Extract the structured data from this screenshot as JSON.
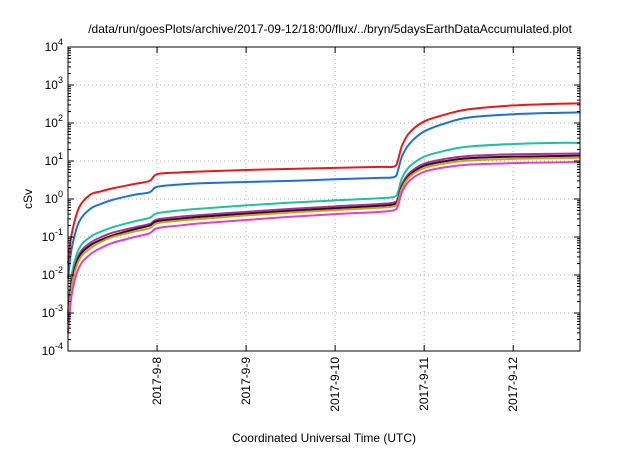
{
  "chart_data": {
    "type": "line",
    "title": "/data/run/goesPlots/archive/2017-09-12/18:00/flux/../bryn/5daysEarthDataAccumulated.plot",
    "xlabel": "Coordinated Universal Time (UTC)",
    "ylabel": "cSv",
    "xlim": [
      "2017-09-07T00:00",
      "2017-09-12T18:00"
    ],
    "ylim": [
      0.0001,
      10000
    ],
    "yscale": "log",
    "grid": true,
    "x_ticks": [
      "2017-9-8",
      "2017-9-9",
      "2017-9-10",
      "2017-9-11",
      "2017-9-12"
    ],
    "x_tick_values": [
      "2017-09-08T00:00",
      "2017-09-09T00:00",
      "2017-09-10T00:00",
      "2017-09-11T00:00",
      "2017-09-12T00:00"
    ],
    "y_ticks": [
      {
        "base": "10",
        "exp": "-4",
        "value": 0.0001
      },
      {
        "base": "10",
        "exp": "-3",
        "value": 0.001
      },
      {
        "base": "10",
        "exp": "-2",
        "value": 0.01
      },
      {
        "base": "10",
        "exp": "-1",
        "value": 0.1
      },
      {
        "base": "10",
        "exp": "0",
        "value": 1
      },
      {
        "base": "10",
        "exp": "1",
        "value": 10
      },
      {
        "base": "10",
        "exp": "2",
        "value": 100
      },
      {
        "base": "10",
        "exp": "3",
        "value": 1000
      },
      {
        "base": "10",
        "exp": "4",
        "value": 10000
      }
    ],
    "x": [
      "2017-09-07T00:00",
      "2017-09-07T01:00",
      "2017-09-07T03:00",
      "2017-09-07T06:00",
      "2017-09-07T09:00",
      "2017-09-07T12:00",
      "2017-09-07T18:00",
      "2017-09-07T22:00",
      "2017-09-08T00:00",
      "2017-09-08T06:00",
      "2017-09-08T12:00",
      "2017-09-09T00:00",
      "2017-09-09T12:00",
      "2017-09-10T00:00",
      "2017-09-10T12:00",
      "2017-09-10T16:00",
      "2017-09-10T17:00",
      "2017-09-10T18:00",
      "2017-09-10T20:00",
      "2017-09-11T00:00",
      "2017-09-11T06:00",
      "2017-09-11T12:00",
      "2017-09-12T00:00",
      "2017-09-12T12:00",
      "2017-09-12T18:00"
    ],
    "series": [
      {
        "color": "#e41a1c",
        "values": [
          0.02,
          0.12,
          0.6,
          1.3,
          1.6,
          1.9,
          2.5,
          3.0,
          4.5,
          5.0,
          5.3,
          5.8,
          6.2,
          6.6,
          7.0,
          7.2,
          11,
          25,
          55,
          110,
          170,
          230,
          290,
          320,
          330
        ]
      },
      {
        "color": "#1f6fd6",
        "values": [
          0.008,
          0.05,
          0.25,
          0.55,
          0.75,
          0.95,
          1.3,
          1.5,
          2.1,
          2.4,
          2.6,
          2.8,
          3.0,
          3.3,
          3.6,
          3.8,
          6,
          13,
          28,
          60,
          100,
          140,
          170,
          185,
          190
        ]
      },
      {
        "color": "#20c0a0",
        "values": [
          0.001,
          0.01,
          0.05,
          0.1,
          0.14,
          0.18,
          0.26,
          0.32,
          0.42,
          0.5,
          0.56,
          0.68,
          0.8,
          0.92,
          1.05,
          1.15,
          1.6,
          3.5,
          7,
          13,
          19,
          24,
          28,
          30,
          30
        ]
      },
      {
        "color": "#b03090",
        "values": [
          0.0008,
          0.007,
          0.035,
          0.07,
          0.1,
          0.13,
          0.18,
          0.22,
          0.29,
          0.34,
          0.38,
          0.46,
          0.55,
          0.64,
          0.74,
          0.82,
          1.1,
          2.4,
          4.8,
          8.5,
          11.5,
          13.5,
          15,
          15.5,
          15.8
        ]
      },
      {
        "color": "#201040",
        "values": [
          0.0006,
          0.006,
          0.03,
          0.06,
          0.085,
          0.11,
          0.16,
          0.2,
          0.26,
          0.3,
          0.34,
          0.41,
          0.49,
          0.57,
          0.66,
          0.73,
          1.0,
          2.1,
          4.2,
          7.5,
          10,
          11.8,
          13,
          13.5,
          13.8
        ]
      },
      {
        "color": "#d4a010",
        "values": [
          0.0005,
          0.005,
          0.025,
          0.05,
          0.075,
          0.1,
          0.14,
          0.17,
          0.23,
          0.27,
          0.3,
          0.37,
          0.44,
          0.51,
          0.59,
          0.65,
          0.9,
          1.9,
          3.8,
          6.5,
          8.8,
          10.3,
          11.4,
          11.9,
          12.2
        ]
      },
      {
        "color": "#e040d0",
        "values": [
          0.0003,
          0.003,
          0.016,
          0.035,
          0.052,
          0.07,
          0.1,
          0.125,
          0.17,
          0.2,
          0.23,
          0.28,
          0.34,
          0.4,
          0.46,
          0.51,
          0.7,
          1.5,
          3.0,
          5.2,
          6.9,
          8.0,
          8.8,
          9.2,
          9.4
        ]
      }
    ]
  }
}
